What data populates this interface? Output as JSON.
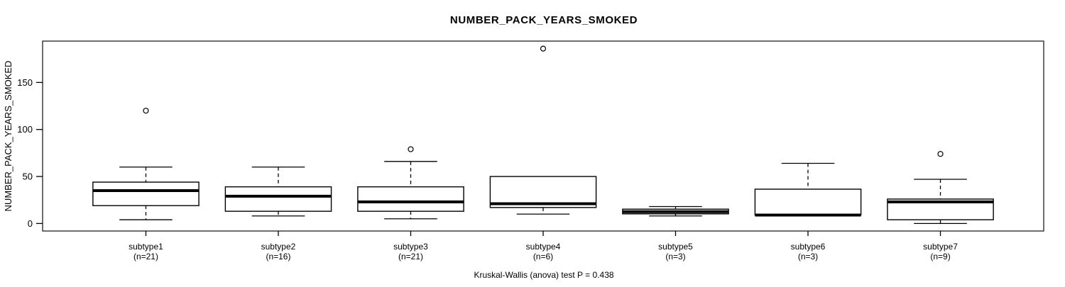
{
  "colors": {
    "stroke": "#000000",
    "frame": "#3d3d3d",
    "background": "#ffffff"
  },
  "chart_data": {
    "type": "boxplot",
    "title": "NUMBER_PACK_YEARS_SMOKED",
    "ylabel": "NUMBER_PACK_YEARS_SMOKED",
    "annotation": "Kruskal-Wallis (anova) test P = 0.438",
    "y_ticks": [
      0,
      50,
      100,
      150
    ],
    "ylim": [
      -8,
      194
    ],
    "grid": false,
    "groups": [
      {
        "label": "subtype1",
        "sublabel": "(n=21)",
        "n": 21,
        "low": 4,
        "q1": 19,
        "median": 35,
        "q3": 44,
        "high": 60,
        "outliers": [
          120
        ]
      },
      {
        "label": "subtype2",
        "sublabel": "(n=16)",
        "n": 16,
        "low": 8,
        "q1": 13,
        "median": 29,
        "q3": 39,
        "high": 60,
        "outliers": []
      },
      {
        "label": "subtype3",
        "sublabel": "(n=21)",
        "n": 21,
        "low": 5,
        "q1": 13,
        "median": 23,
        "q3": 39,
        "high": 66,
        "outliers": [
          79
        ]
      },
      {
        "label": "subtype4",
        "sublabel": "(n=6)",
        "n": 6,
        "low": 10,
        "q1": 17,
        "median": 21,
        "q3": 50,
        "high": 50,
        "outliers": [
          186
        ]
      },
      {
        "label": "subtype5",
        "sublabel": "(n=3)",
        "n": 3,
        "low": 8,
        "q1": 10.25,
        "median": 12.5,
        "q3": 15.25,
        "high": 18,
        "outliers": []
      },
      {
        "label": "subtype6",
        "sublabel": "(n=3)",
        "n": 3,
        "low": 9,
        "q1": 9,
        "median": 9,
        "q3": 36.5,
        "high": 64,
        "outliers": []
      },
      {
        "label": "subtype7",
        "sublabel": "(n=9)",
        "n": 9,
        "low": 0,
        "q1": 4,
        "median": 23,
        "q3": 26,
        "high": 47,
        "outliers": [
          74
        ]
      }
    ]
  }
}
